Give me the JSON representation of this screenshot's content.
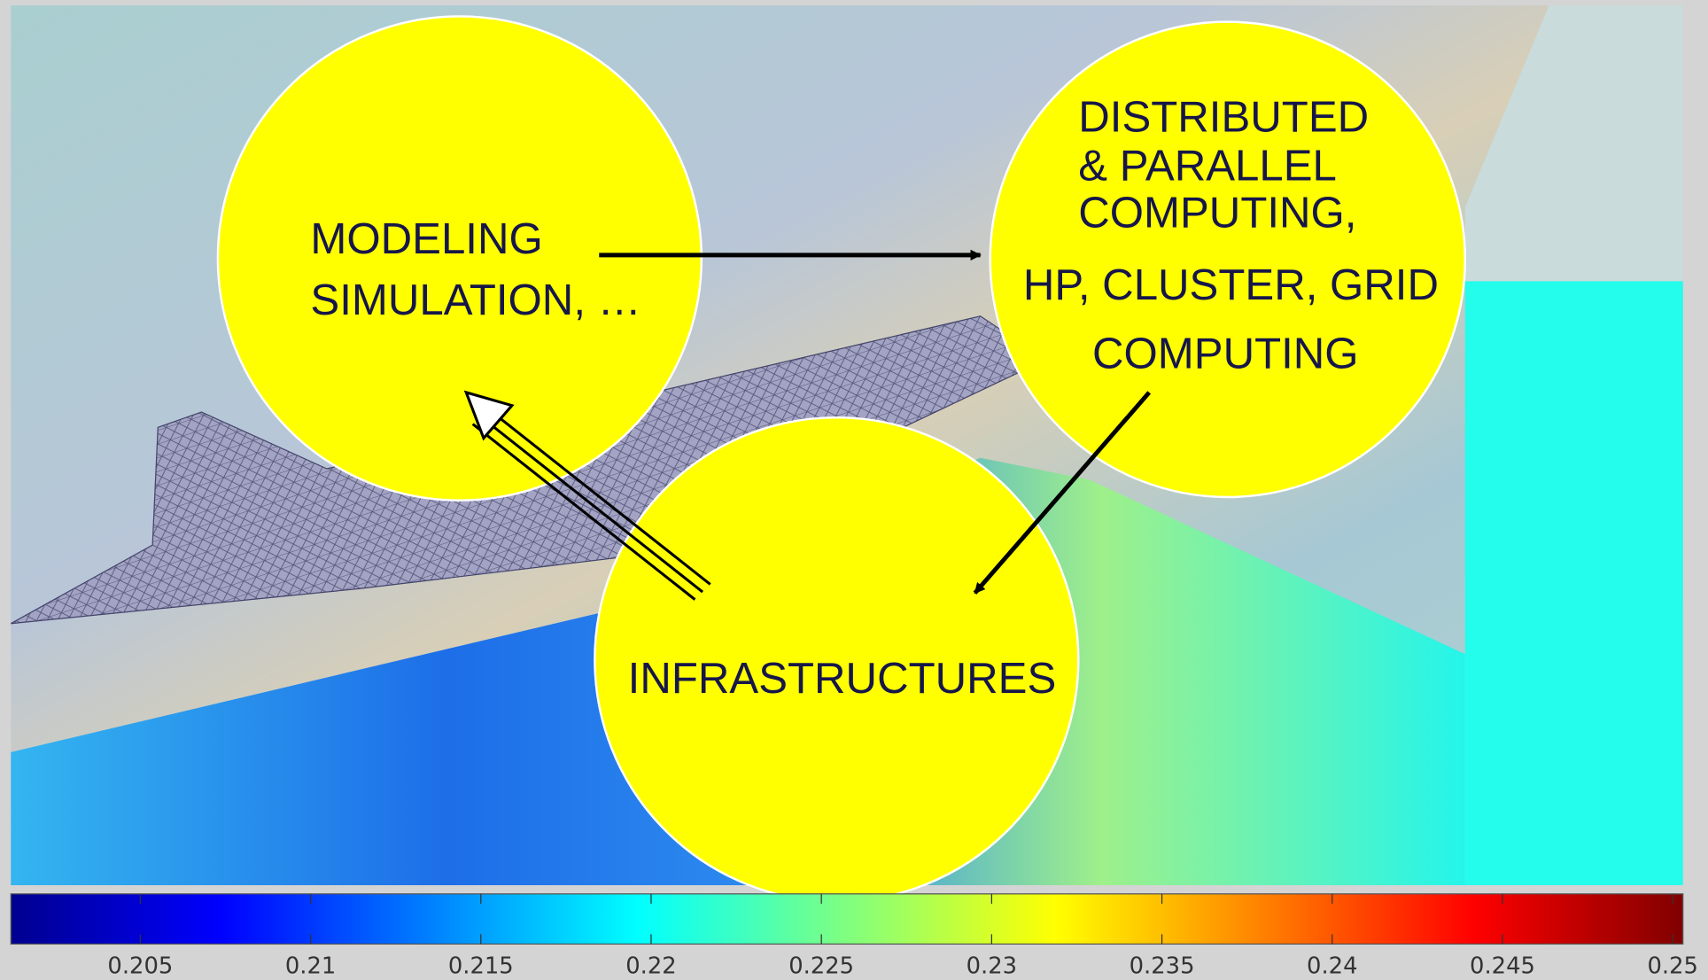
{
  "nodes": [
    {
      "label": [
        "MODELING",
        "SIMULATION, …"
      ]
    },
    {
      "label": [
        "DISTRIBUTED",
        "& PARALLEL",
        "COMPUTING,",
        "HP, CLUSTER, GRID",
        "COMPUTING"
      ]
    },
    {
      "label": [
        "INFRASTRUCTURES"
      ]
    }
  ],
  "colorbar": {
    "lim": [
      0.2012,
      0.2503
    ],
    "ticks": [
      0.205,
      0.21,
      0.215,
      0.22,
      0.225,
      0.23,
      0.235,
      0.24,
      0.245,
      0.25
    ]
  }
}
